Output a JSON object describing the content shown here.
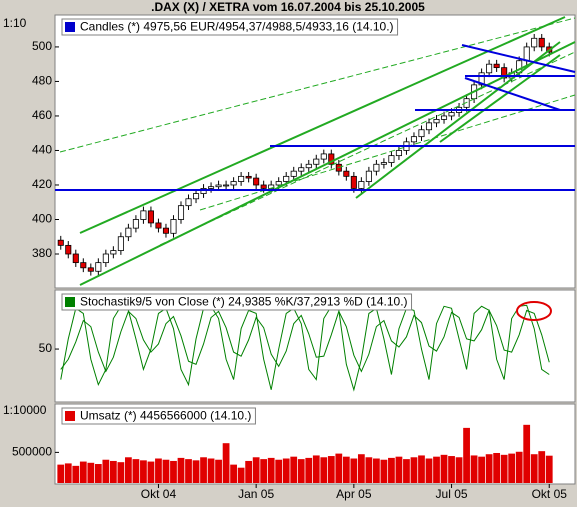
{
  "chart_data": [
    {
      "type": "candlestick",
      "title": ".DAX (X) / XETRA vom 16.07.2004 bis 25.10.2005",
      "scale_label": "1:10",
      "name": "Candles (*) 4975,56 EUR/4954,37/4988,5/4933,16 (14.10.)",
      "legend_color": "#0000cc",
      "up_color": "#ffffff",
      "down_color": "#e00000",
      "open": [
        388,
        385,
        380,
        375,
        372,
        370,
        375,
        380,
        382,
        390,
        395,
        400,
        405,
        398,
        395,
        392,
        400,
        408,
        412,
        415,
        418,
        419,
        420,
        420,
        422,
        425,
        424,
        420,
        418,
        420,
        422,
        425,
        428,
        430,
        432,
        435,
        438,
        432,
        428,
        425,
        418,
        422,
        428,
        432,
        433,
        437,
        440,
        445,
        448,
        452,
        456,
        458,
        460,
        462,
        465,
        470,
        478,
        485,
        490,
        488,
        482,
        485,
        492,
        500,
        505,
        500
      ],
      "high": [
        390.5,
        387.5,
        382.5,
        377.5,
        374.5,
        377.5,
        382.5,
        384.5,
        392.5,
        397.5,
        402.5,
        407.5,
        407.5,
        400.5,
        397.5,
        402.5,
        410.5,
        414.5,
        417.5,
        420.5,
        421.5,
        422.5,
        422.5,
        424.5,
        427.5,
        427.5,
        426.5,
        422.5,
        422.5,
        424.5,
        427.5,
        430.5,
        432.5,
        434.5,
        437.5,
        440.5,
        440.5,
        434.5,
        430.5,
        427.5,
        424.5,
        430.5,
        434.5,
        435.5,
        439.5,
        442.5,
        447.5,
        450.5,
        454.5,
        458.5,
        460.5,
        462.5,
        464.5,
        467.5,
        472.5,
        480.5,
        487.5,
        492.5,
        492.5,
        490.5,
        487.5,
        494.5,
        502.5,
        507.5,
        507.5,
        502.5
      ],
      "low": [
        382.5,
        377.5,
        372.5,
        369.5,
        367.5,
        367.5,
        372.5,
        377.5,
        379.5,
        387.5,
        392.5,
        397.5,
        395.5,
        392.5,
        389.5,
        389.5,
        397.5,
        405.5,
        409.5,
        412.5,
        415.5,
        416.5,
        417.5,
        417.5,
        419.5,
        421.5,
        417.5,
        415.5,
        415.5,
        417.5,
        419.5,
        422.5,
        425.5,
        427.5,
        429.5,
        432.5,
        429.5,
        425.5,
        422.5,
        415.5,
        415.5,
        419.5,
        425.5,
        429.5,
        430.5,
        434.5,
        437.5,
        442.5,
        445.5,
        449.5,
        453.5,
        455.5,
        457.5,
        459.5,
        462.5,
        467.5,
        475.5,
        482.5,
        485.5,
        479.5,
        479.5,
        482.5,
        489.5,
        497.5,
        497.5,
        494.5
      ],
      "close": [
        385,
        380,
        375,
        372,
        370,
        375,
        380,
        382,
        390,
        395,
        400,
        405,
        398,
        395,
        392,
        400,
        408,
        412,
        415,
        418,
        419,
        420,
        420,
        422,
        425,
        424,
        420,
        418,
        420,
        422,
        425,
        428,
        430,
        432,
        435,
        438,
        432,
        428,
        425,
        418,
        422,
        428,
        432,
        433,
        437,
        440,
        445,
        448,
        452,
        456,
        458,
        460,
        462,
        465,
        470,
        478,
        485,
        490,
        488,
        482,
        485,
        492,
        500,
        505,
        500,
        497
      ],
      "ylim": [
        360.3,
        518.5
      ],
      "yticks": [
        380,
        400,
        420,
        440,
        460,
        480,
        500
      ]
    },
    {
      "type": "line",
      "name": "Stochastik9/5 von Close (*) 24,9385 %K/37,2913 %D (14.10.)",
      "legend_color": "#008000",
      "series": [
        {
          "color": "#008000",
          "values": [
            20,
            60,
            90,
            85,
            40,
            15,
            30,
            80,
            92,
            88,
            60,
            30,
            50,
            85,
            90,
            70,
            30,
            15,
            60,
            90,
            92,
            80,
            40,
            20,
            70,
            88,
            85,
            40,
            10,
            50,
            85,
            90,
            75,
            30,
            20,
            80,
            92,
            88,
            35,
            10,
            40,
            85,
            90,
            60,
            25,
            70,
            90,
            88,
            50,
            20,
            75,
            92,
            90,
            60,
            30,
            85,
            92,
            88,
            40,
            20,
            80,
            92,
            93,
            70,
            30,
            25
          ]
        },
        {
          "color": "#008000",
          "values": [
            30,
            40,
            57,
            78,
            72,
            47,
            28,
            42,
            67,
            87,
            80,
            59,
            47,
            55,
            75,
            82,
            63,
            38,
            35,
            55,
            81,
            87,
            71,
            47,
            43,
            59,
            81,
            71,
            45,
            33,
            48,
            75,
            83,
            65,
            42,
            43,
            64,
            87,
            72,
            44,
            28,
            45,
            72,
            78,
            58,
            52,
            62,
            83,
            76,
            53,
            48,
            62,
            86,
            81,
            60,
            58,
            69,
            88,
            73,
            49,
            47,
            64,
            88,
            85,
            64,
            37
          ]
        }
      ],
      "ylim": [
        -2,
        108
      ],
      "yticks": [
        50
      ]
    },
    {
      "type": "bar",
      "name": "Umsatz (*) 4456566000 (14.10.)",
      "scale_label": "1:10000",
      "color": "#e00000",
      "categories": [
        null,
        null,
        null,
        null,
        null,
        null,
        null,
        null,
        null,
        null,
        null,
        null,
        null,
        "Okt 04",
        null,
        null,
        null,
        null,
        null,
        null,
        null,
        null,
        null,
        null,
        null,
        null,
        "Jan 05",
        null,
        null,
        null,
        null,
        null,
        null,
        null,
        null,
        null,
        null,
        null,
        null,
        "Apr 05",
        null,
        null,
        null,
        null,
        null,
        null,
        null,
        null,
        null,
        null,
        null,
        null,
        "Jul 05",
        null,
        null,
        null,
        null,
        null,
        null,
        null,
        null,
        null,
        null,
        null,
        null,
        "Okt 05"
      ],
      "values": [
        300000,
        320000,
        280000,
        350000,
        330000,
        310000,
        380000,
        360000,
        340000,
        420000,
        390000,
        370000,
        350000,
        400000,
        380000,
        360000,
        410000,
        390000,
        370000,
        420000,
        400000,
        380000,
        650000,
        300000,
        250000,
        360000,
        420000,
        390000,
        410000,
        380000,
        400000,
        430000,
        390000,
        410000,
        450000,
        420000,
        440000,
        480000,
        430000,
        400000,
        470000,
        420000,
        400000,
        380000,
        410000,
        430000,
        390000,
        420000,
        450000,
        400000,
        430000,
        460000,
        440000,
        420000,
        900000,
        450000,
        430000,
        470000,
        490000,
        460000,
        480000,
        510000,
        950000,
        470000,
        520000,
        446000
      ],
      "ylim": [
        0,
        1290000
      ],
      "yticks": [
        500000
      ]
    }
  ]
}
